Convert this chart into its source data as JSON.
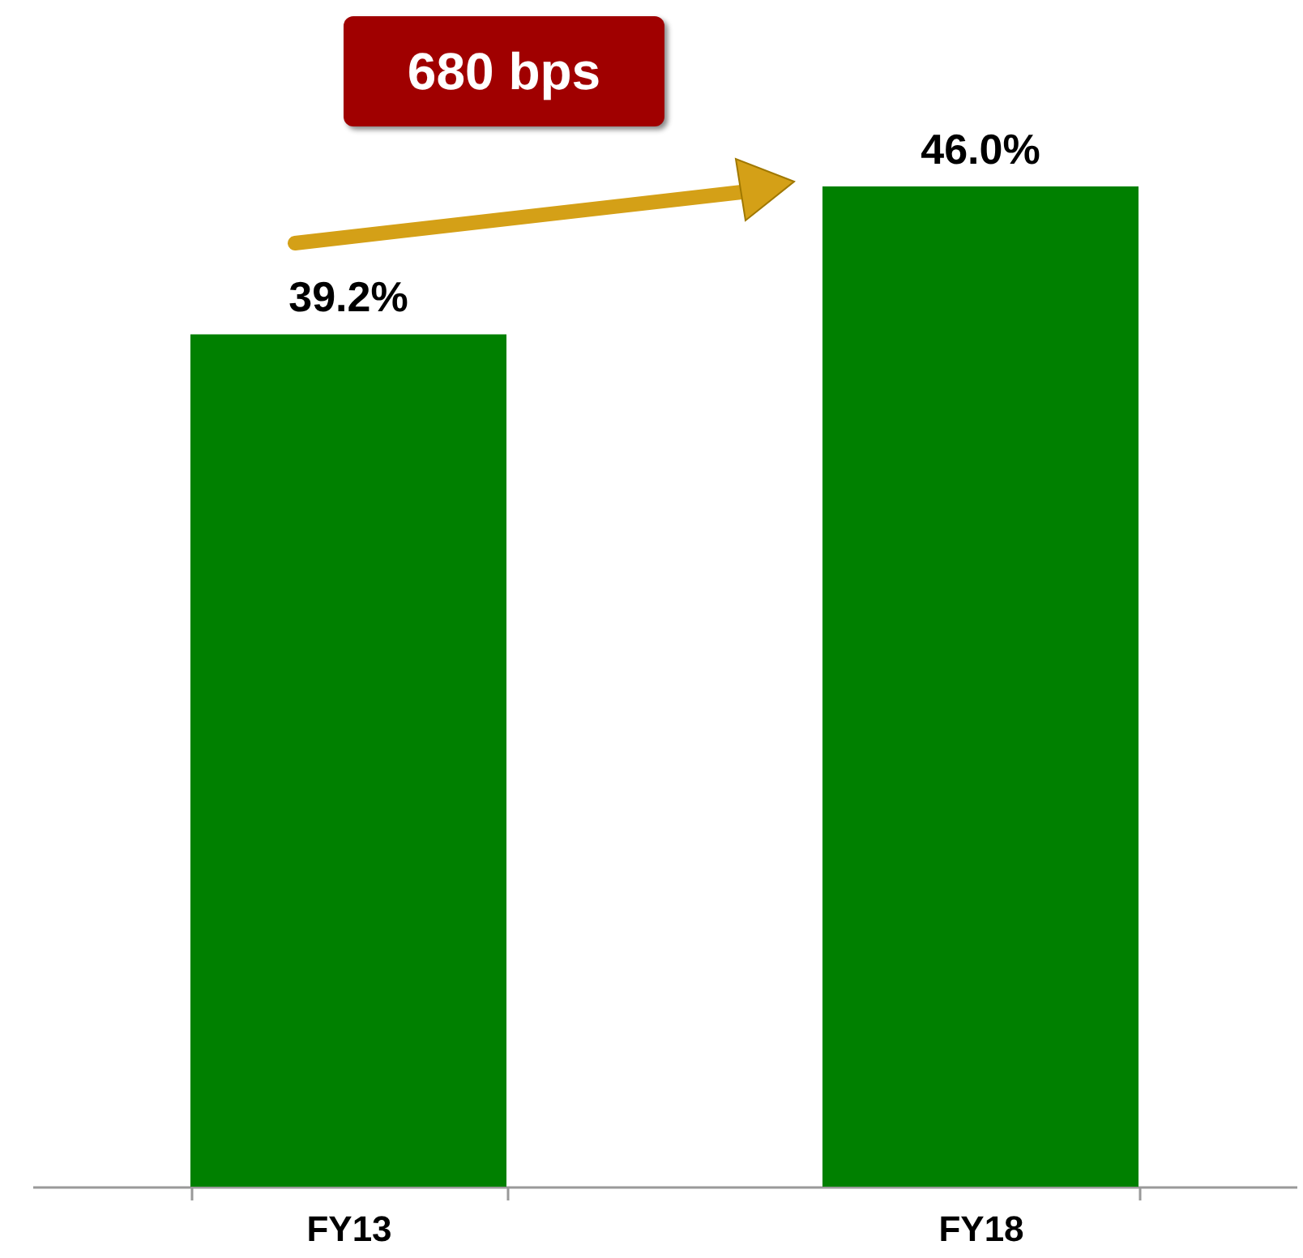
{
  "chart_data": {
    "type": "bar",
    "categories": [
      "FY13",
      "FY18"
    ],
    "values": [
      39.2,
      46.0
    ],
    "color": "#008000",
    "value_labels": [
      "39.2%",
      "46.0%"
    ],
    "annotations": [
      "680 bps"
    ]
  }
}
